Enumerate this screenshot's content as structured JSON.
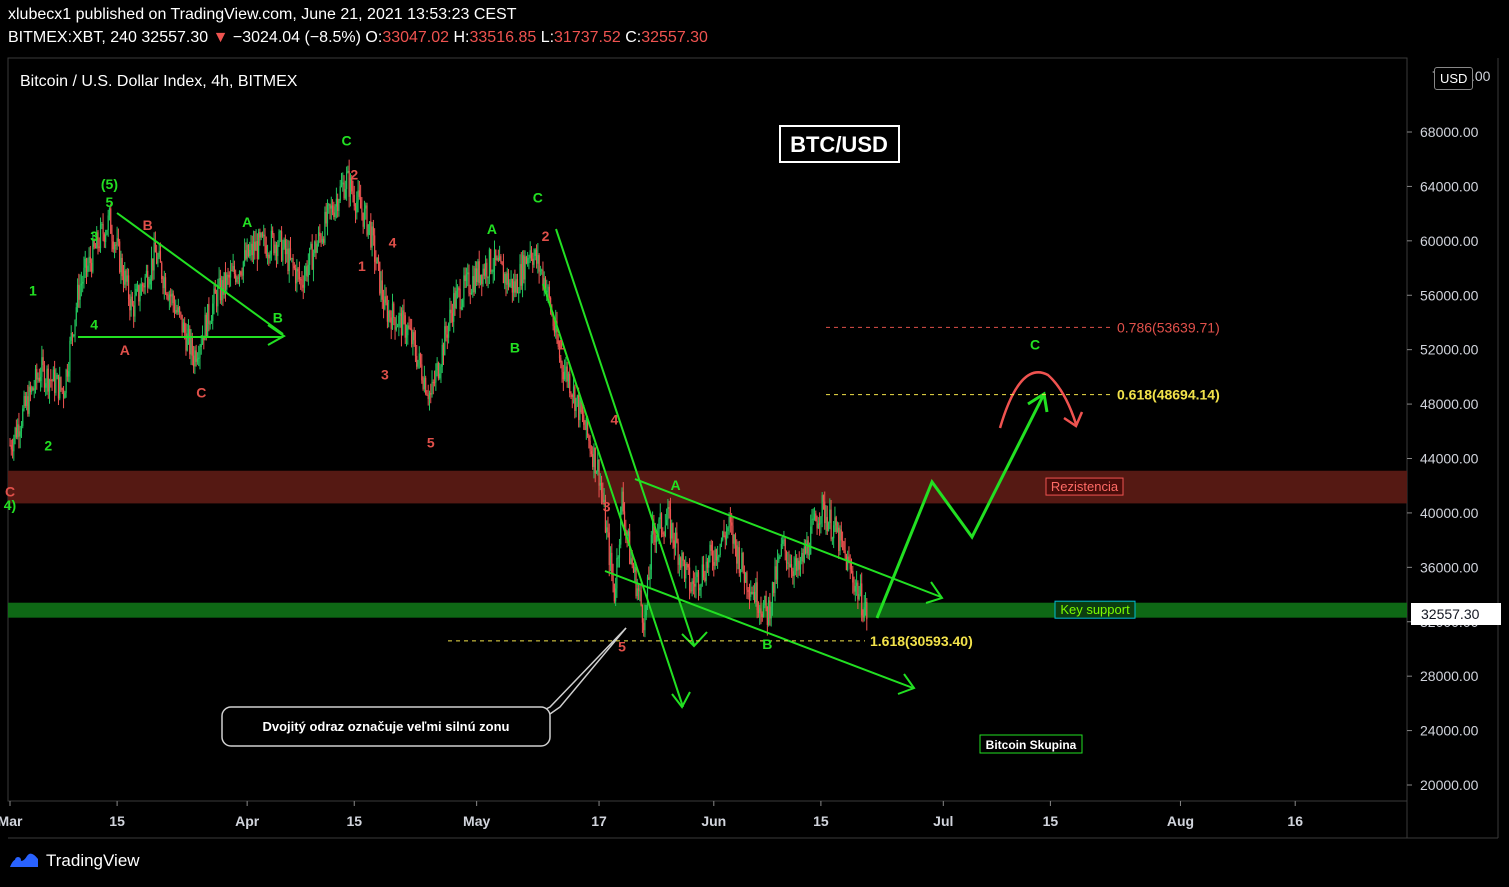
{
  "header": {
    "line1": "xlubecx1 published on TradingView.com, June 21, 2021 13:53:23 CEST",
    "symbol": "BITMEX:XBT, 240",
    "price": "32557.30",
    "change_arrow": "▼",
    "change": "−3024.04 (−8.5%)",
    "o_label": "O:",
    "o_val": "33047.02",
    "h_label": "H:",
    "h_val": "33516.85",
    "l_label": "L:",
    "l_val": "31737.52",
    "c_label": "C:",
    "c_val": "32557.30"
  },
  "chart_title": "Bitcoin / U.S. Dollar Index, 4h, BITMEX",
  "currency_button": "USD",
  "last_price_tag": "32557.30",
  "footer_brand": "TradingView",
  "colors": {
    "bg": "#000000",
    "bull": "#26a69a",
    "bear": "#ef5350",
    "green_line": "#22e022",
    "resistance_zone": "#5a1a14",
    "support_zone": "#0f6e16",
    "fib_yellow": "#f2e24a",
    "fib_red": "#e0504a"
  },
  "chart_data": {
    "type": "candlestick",
    "ylim": [
      18000,
      73000
    ],
    "y_ticks": [
      20000,
      24000,
      28000,
      32000,
      36000,
      40000,
      44000,
      48000,
      52000,
      56000,
      60000,
      64000,
      68000
    ],
    "y_tick_labels": [
      "20000.00",
      "24000.00",
      "28000.00",
      "32000.00",
      "36000.00",
      "40000.00",
      "44000.00",
      "48000.00",
      "52000.00",
      "56000.00",
      "60000.00",
      "64000.00",
      "68000.00"
    ],
    "y_top_cut_label": "72000.00",
    "x_ticks": [
      {
        "date": "2021-03-01",
        "label": "Mar"
      },
      {
        "date": "2021-03-15",
        "label": "15"
      },
      {
        "date": "2021-04-01",
        "label": "Apr"
      },
      {
        "date": "2021-04-15",
        "label": "15"
      },
      {
        "date": "2021-05-01",
        "label": "May"
      },
      {
        "date": "2021-05-17",
        "label": "17"
      },
      {
        "date": "2021-06-01",
        "label": "Jun"
      },
      {
        "date": "2021-06-15",
        "label": "15"
      },
      {
        "date": "2021-07-01",
        "label": "Jul"
      },
      {
        "date": "2021-07-15",
        "label": "15"
      },
      {
        "date": "2021-08-01",
        "label": "Aug"
      },
      {
        "date": "2021-08-16",
        "label": "16"
      }
    ],
    "price_path": [
      [
        "2021-03-01",
        45000
      ],
      [
        "2021-03-05",
        50500
      ],
      [
        "2021-03-08",
        49000
      ],
      [
        "2021-03-10",
        56500
      ],
      [
        "2021-03-13",
        60500
      ],
      [
        "2021-03-14",
        61500
      ],
      [
        "2021-03-17",
        55000
      ],
      [
        "2021-03-20",
        59000
      ],
      [
        "2021-03-25",
        51500
      ],
      [
        "2021-03-28",
        56000
      ],
      [
        "2021-04-02",
        59500
      ],
      [
        "2021-04-05",
        60000
      ],
      [
        "2021-04-08",
        57000
      ],
      [
        "2021-04-13",
        63500
      ],
      [
        "2021-04-14",
        64500
      ],
      [
        "2021-04-17",
        61000
      ],
      [
        "2021-04-19",
        55000
      ],
      [
        "2021-04-22",
        53500
      ],
      [
        "2021-04-25",
        48500
      ],
      [
        "2021-04-28",
        55500
      ],
      [
        "2021-05-01",
        57500
      ],
      [
        "2021-05-03",
        58500
      ],
      [
        "2021-05-06",
        56500
      ],
      [
        "2021-05-08",
        59500
      ],
      [
        "2021-05-10",
        57000
      ],
      [
        "2021-05-12",
        51000
      ],
      [
        "2021-05-13",
        50000
      ],
      [
        "2021-05-15",
        46500
      ],
      [
        "2021-05-17",
        43000
      ],
      [
        "2021-05-19",
        34000
      ],
      [
        "2021-05-20",
        41000
      ],
      [
        "2021-05-21",
        37000
      ],
      [
        "2021-05-23",
        32000
      ],
      [
        "2021-05-24",
        38500
      ],
      [
        "2021-05-26",
        39500
      ],
      [
        "2021-05-29",
        34500
      ],
      [
        "2021-06-01",
        37000
      ],
      [
        "2021-06-03",
        39000
      ],
      [
        "2021-06-05",
        35500
      ],
      [
        "2021-06-08",
        32500
      ],
      [
        "2021-06-10",
        37500
      ],
      [
        "2021-06-12",
        35500
      ],
      [
        "2021-06-15",
        40500
      ],
      [
        "2021-06-17",
        38500
      ],
      [
        "2021-06-19",
        35500
      ],
      [
        "2021-06-21",
        32557
      ]
    ],
    "wave_labels": [
      {
        "text": "C",
        "date": "2021-03-01",
        "price": 41200,
        "color": "red"
      },
      {
        "text": "4)",
        "date": "2021-03-01",
        "price": 40200,
        "color": "green"
      },
      {
        "text": "1",
        "date": "2021-03-04",
        "price": 56000,
        "color": "green"
      },
      {
        "text": "2",
        "date": "2021-03-06",
        "price": 44600,
        "color": "green"
      },
      {
        "text": "3",
        "date": "2021-03-12",
        "price": 60000,
        "color": "green"
      },
      {
        "text": "4",
        "date": "2021-03-12",
        "price": 53500,
        "color": "green"
      },
      {
        "text": "(5)",
        "date": "2021-03-14",
        "price": 63800,
        "color": "green"
      },
      {
        "text": "5",
        "date": "2021-03-14",
        "price": 62500,
        "color": "green"
      },
      {
        "text": "B",
        "date": "2021-03-19",
        "price": 60800,
        "color": "red"
      },
      {
        "text": "A",
        "date": "2021-03-16",
        "price": 51600,
        "color": "red"
      },
      {
        "text": "C",
        "date": "2021-03-26",
        "price": 48500,
        "color": "red"
      },
      {
        "text": "A",
        "date": "2021-04-01",
        "price": 61000,
        "color": "green"
      },
      {
        "text": "B",
        "date": "2021-04-05",
        "price": 54000,
        "color": "green"
      },
      {
        "text": "C",
        "date": "2021-04-14",
        "price": 67000,
        "color": "green"
      },
      {
        "text": "2",
        "date": "2021-04-15",
        "price": 64500,
        "color": "red"
      },
      {
        "text": "4",
        "date": "2021-04-20",
        "price": 59500,
        "color": "red"
      },
      {
        "text": "1",
        "date": "2021-04-16",
        "price": 57800,
        "color": "red"
      },
      {
        "text": "3",
        "date": "2021-04-19",
        "price": 49800,
        "color": "red"
      },
      {
        "text": "5",
        "date": "2021-04-25",
        "price": 44800,
        "color": "red"
      },
      {
        "text": "A",
        "date": "2021-05-03",
        "price": 60500,
        "color": "green"
      },
      {
        "text": "B",
        "date": "2021-05-06",
        "price": 51800,
        "color": "green"
      },
      {
        "text": "C",
        "date": "2021-05-09",
        "price": 62800,
        "color": "green"
      },
      {
        "text": "2",
        "date": "2021-05-10",
        "price": 60000,
        "color": "red"
      },
      {
        "text": "1",
        "date": "2021-05-12",
        "price": 52000,
        "color": "red"
      },
      {
        "text": "4",
        "date": "2021-05-19",
        "price": 46500,
        "color": "red"
      },
      {
        "text": "3",
        "date": "2021-05-18",
        "price": 40100,
        "color": "red"
      },
      {
        "text": "5",
        "date": "2021-05-20",
        "price": 29800,
        "color": "red"
      },
      {
        "text": "A",
        "date": "2021-05-27",
        "price": 41700,
        "color": "green"
      },
      {
        "text": "B",
        "date": "2021-06-08",
        "price": 30000,
        "color": "green"
      },
      {
        "text": "C",
        "date": "2021-07-13",
        "price": 52000,
        "color": "green"
      }
    ],
    "fib_levels": [
      {
        "label": "0.786(53639.71)",
        "price": 53639.71,
        "color": "red"
      },
      {
        "label": "0.618(48694.14)",
        "price": 48694.14,
        "color": "yellow"
      },
      {
        "label": "1.618(30593.40)",
        "price": 30593.4,
        "color": "yellow"
      }
    ],
    "zones": [
      {
        "label": "Rezistencia",
        "from": 40700,
        "to": 43100,
        "color": "red"
      },
      {
        "label": "Key support",
        "from": 32300,
        "to": 33400,
        "color": "green"
      }
    ],
    "chart_label": "BTC/USD",
    "callout": "Dvojitý odraz označuje veľmi silnú zonu",
    "group_label": "Bitcoin Skupina"
  }
}
